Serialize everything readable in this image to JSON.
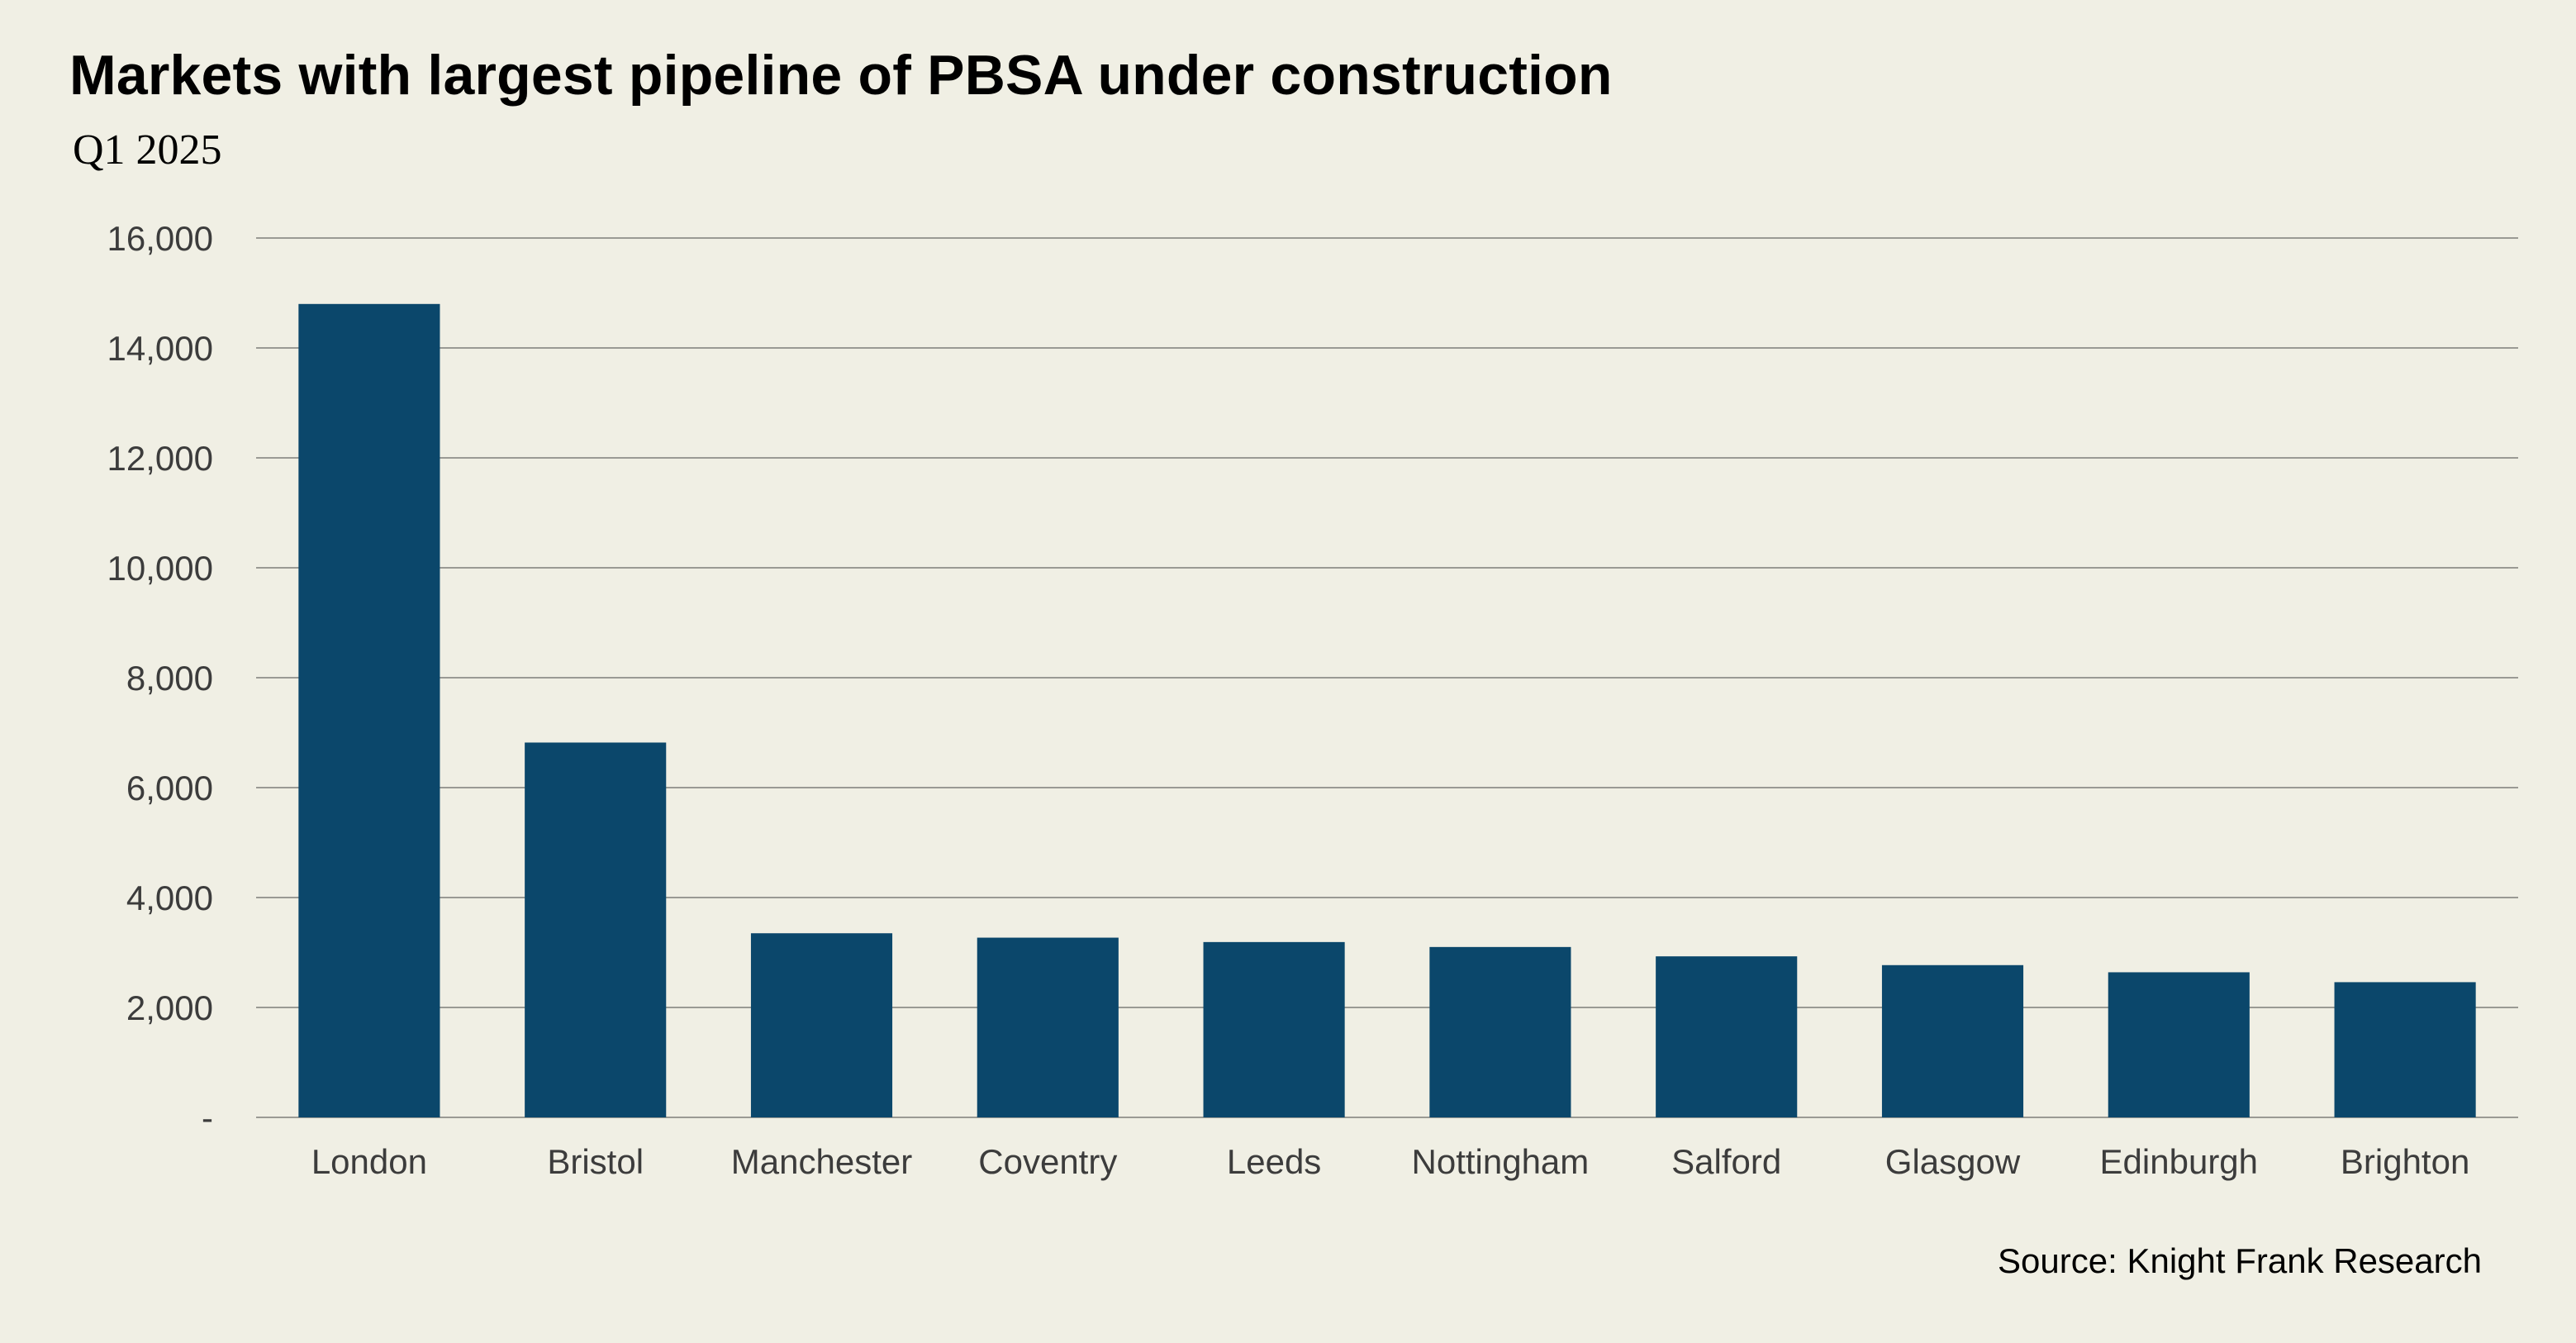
{
  "chart_data": {
    "type": "bar",
    "title": "Markets with largest pipeline of PBSA under construction",
    "subtitle": "Q1 2025",
    "source": "Source: Knight Frank Research",
    "categories": [
      "London",
      "Bristol",
      "Manchester",
      "Coventry",
      "Leeds",
      "Nottingham",
      "Salford",
      "Glasgow",
      "Edinburgh",
      "Brighton"
    ],
    "values": [
      14800,
      6820,
      3350,
      3270,
      3190,
      3100,
      2930,
      2770,
      2640,
      2460
    ],
    "ylim": [
      0,
      16000
    ],
    "yticks": [
      0,
      2000,
      4000,
      6000,
      8000,
      10000,
      12000,
      14000,
      16000
    ],
    "ytick_labels": [
      "-",
      "2,000",
      "4,000",
      "6,000",
      "8,000",
      "10,000",
      "12,000",
      "14,000",
      "16,000"
    ],
    "xlabel": "",
    "ylabel": "",
    "grid": true,
    "bar_color": "#0b476b",
    "grid_color": "#9a9a94",
    "label_color": "#3c3c3c"
  }
}
